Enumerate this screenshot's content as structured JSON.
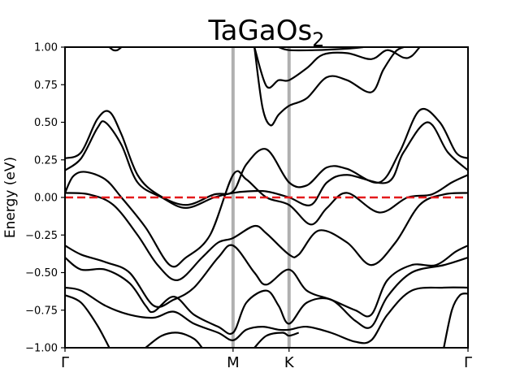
{
  "chart_data": {
    "type": "line",
    "title": "TaGaOs",
    "title_subscript": "2",
    "ylabel": "Energy (eV)",
    "xlabel": "",
    "ylim": [
      -1.0,
      1.0
    ],
    "xlim": [
      0,
      1
    ],
    "yticks": [
      1.0,
      0.75,
      0.5,
      0.25,
      0.0,
      -0.25,
      -0.5,
      -0.75,
      -1.0
    ],
    "ytick_labels": [
      "1.00",
      "0.75",
      "0.50",
      "0.25",
      "0.00",
      "−0.25",
      "−0.50",
      "−0.75",
      "−1.00"
    ],
    "xticks": [
      {
        "label": "Γ",
        "pos": 0.0
      },
      {
        "label": "M",
        "pos": 0.417
      },
      {
        "label": "K",
        "pos": 0.556
      },
      {
        "label": "Γ",
        "pos": 1.0
      }
    ],
    "kpoint_line_color": "#b0b0b0",
    "fermi_level": {
      "value": 0.0,
      "color": "#e41a1c",
      "style": "dashed"
    },
    "band_color": "#000000",
    "grid": false,
    "series": [
      {
        "points": [
          [
            0.0,
            0.26
          ],
          [
            0.04,
            0.3
          ],
          [
            0.08,
            0.52
          ],
          [
            0.11,
            0.57
          ],
          [
            0.14,
            0.42
          ],
          [
            0.18,
            0.15
          ],
          [
            0.23,
            0.02
          ],
          [
            0.3,
            -0.05
          ],
          [
            0.37,
            0.02
          ],
          [
            0.417,
            0.04
          ],
          [
            0.45,
            0.22
          ],
          [
            0.5,
            0.32
          ],
          [
            0.556,
            0.1
          ],
          [
            0.6,
            0.08
          ],
          [
            0.65,
            0.2
          ],
          [
            0.7,
            0.19
          ],
          [
            0.78,
            0.1
          ],
          [
            0.83,
            0.3
          ],
          [
            0.88,
            0.58
          ],
          [
            0.93,
            0.5
          ],
          [
            0.97,
            0.3
          ],
          [
            1.0,
            0.26
          ]
        ]
      },
      {
        "points": [
          [
            0.0,
            0.18
          ],
          [
            0.04,
            0.26
          ],
          [
            0.08,
            0.46
          ],
          [
            0.1,
            0.5
          ],
          [
            0.14,
            0.35
          ],
          [
            0.18,
            0.1
          ],
          [
            0.24,
            0.0
          ],
          [
            0.3,
            -0.07
          ],
          [
            0.37,
            0.0
          ],
          [
            0.417,
            0.03
          ],
          [
            0.45,
            0.04
          ],
          [
            0.5,
            0.04
          ],
          [
            0.556,
            0.0
          ],
          [
            0.61,
            -0.05
          ],
          [
            0.65,
            0.1
          ],
          [
            0.7,
            0.15
          ],
          [
            0.8,
            0.1
          ],
          [
            0.84,
            0.3
          ],
          [
            0.9,
            0.5
          ],
          [
            0.95,
            0.3
          ],
          [
            1.0,
            0.18
          ]
        ]
      },
      {
        "points": [
          [
            0.0,
            0.03
          ],
          [
            0.02,
            0.14
          ],
          [
            0.05,
            0.17
          ],
          [
            0.1,
            0.12
          ],
          [
            0.14,
            0.0
          ],
          [
            0.2,
            -0.2
          ],
          [
            0.26,
            -0.45
          ],
          [
            0.3,
            -0.4
          ],
          [
            0.36,
            -0.25
          ],
          [
            0.417,
            0.15
          ],
          [
            0.45,
            0.12
          ],
          [
            0.5,
            0.0
          ],
          [
            0.556,
            -0.05
          ],
          [
            0.61,
            -0.18
          ],
          [
            0.65,
            -0.07
          ],
          [
            0.7,
            0.03
          ],
          [
            0.78,
            -0.1
          ],
          [
            0.85,
            0.0
          ],
          [
            0.91,
            0.02
          ],
          [
            0.96,
            0.1
          ],
          [
            1.0,
            0.15
          ]
        ]
      },
      {
        "points": [
          [
            0.0,
            0.03
          ],
          [
            0.06,
            0.02
          ],
          [
            0.12,
            -0.05
          ],
          [
            0.18,
            -0.25
          ],
          [
            0.23,
            -0.45
          ],
          [
            0.28,
            -0.55
          ],
          [
            0.34,
            -0.4
          ],
          [
            0.38,
            -0.3
          ],
          [
            0.417,
            -0.27
          ],
          [
            0.47,
            -0.19
          ],
          [
            0.5,
            -0.24
          ],
          [
            0.556,
            -0.38
          ],
          [
            0.58,
            -0.38
          ],
          [
            0.63,
            -0.22
          ],
          [
            0.7,
            -0.3
          ],
          [
            0.76,
            -0.45
          ],
          [
            0.82,
            -0.3
          ],
          [
            0.88,
            -0.05
          ],
          [
            0.94,
            0.02
          ],
          [
            1.0,
            0.03
          ]
        ]
      },
      {
        "points": [
          [
            0.0,
            -0.32
          ],
          [
            0.04,
            -0.38
          ],
          [
            0.1,
            -0.43
          ],
          [
            0.16,
            -0.5
          ],
          [
            0.22,
            -0.72
          ],
          [
            0.27,
            -0.68
          ],
          [
            0.32,
            -0.6
          ],
          [
            0.38,
            -0.4
          ],
          [
            0.417,
            -0.32
          ],
          [
            0.47,
            -0.5
          ],
          [
            0.5,
            -0.58
          ],
          [
            0.556,
            -0.48
          ],
          [
            0.6,
            -0.62
          ],
          [
            0.66,
            -0.68
          ],
          [
            0.72,
            -0.75
          ],
          [
            0.76,
            -0.78
          ],
          [
            0.8,
            -0.55
          ],
          [
            0.86,
            -0.45
          ],
          [
            0.92,
            -0.45
          ],
          [
            0.97,
            -0.36
          ],
          [
            1.0,
            -0.32
          ]
        ]
      },
      {
        "points": [
          [
            0.0,
            -0.4
          ],
          [
            0.04,
            -0.48
          ],
          [
            0.1,
            -0.48
          ],
          [
            0.16,
            -0.57
          ],
          [
            0.2,
            -0.72
          ],
          [
            0.22,
            -0.76
          ],
          [
            0.27,
            -0.66
          ],
          [
            0.32,
            -0.78
          ],
          [
            0.38,
            -0.86
          ],
          [
            0.417,
            -0.9
          ],
          [
            0.45,
            -0.7
          ],
          [
            0.5,
            -0.62
          ],
          [
            0.53,
            -0.72
          ],
          [
            0.556,
            -0.84
          ],
          [
            0.6,
            -0.7
          ],
          [
            0.66,
            -0.68
          ],
          [
            0.72,
            -0.82
          ],
          [
            0.76,
            -0.86
          ],
          [
            0.8,
            -0.66
          ],
          [
            0.86,
            -0.5
          ],
          [
            0.94,
            -0.45
          ],
          [
            1.0,
            -0.4
          ]
        ]
      },
      {
        "points": [
          [
            0.0,
            -0.6
          ],
          [
            0.04,
            -0.62
          ],
          [
            0.1,
            -0.72
          ],
          [
            0.16,
            -0.78
          ],
          [
            0.22,
            -0.8
          ],
          [
            0.27,
            -0.76
          ],
          [
            0.32,
            -0.84
          ],
          [
            0.38,
            -0.9
          ],
          [
            0.417,
            -0.95
          ],
          [
            0.45,
            -0.88
          ],
          [
            0.49,
            -0.86
          ],
          [
            0.53,
            -0.88
          ],
          [
            0.556,
            -0.88
          ],
          [
            0.6,
            -0.86
          ],
          [
            0.66,
            -0.9
          ],
          [
            0.72,
            -0.96
          ],
          [
            0.76,
            -0.95
          ],
          [
            0.8,
            -0.78
          ],
          [
            0.86,
            -0.62
          ],
          [
            0.94,
            -0.6
          ],
          [
            1.0,
            -0.6
          ]
        ]
      },
      {
        "points": [
          [
            0.0,
            -0.65
          ],
          [
            0.04,
            -0.7
          ],
          [
            0.08,
            -0.85
          ],
          [
            0.11,
            -1.0
          ]
        ]
      },
      {
        "points": [
          [
            0.94,
            -1.0
          ],
          [
            0.96,
            -0.75
          ],
          [
            0.98,
            -0.65
          ],
          [
            1.0,
            -0.64
          ]
        ]
      },
      {
        "points": [
          [
            0.2,
            -1.0
          ],
          [
            0.24,
            -0.92
          ],
          [
            0.28,
            -0.9
          ],
          [
            0.32,
            -0.94
          ],
          [
            0.34,
            -1.0
          ]
        ]
      },
      {
        "points": [
          [
            0.47,
            -1.0
          ],
          [
            0.5,
            -0.92
          ],
          [
            0.54,
            -0.9
          ],
          [
            0.556,
            -0.92
          ],
          [
            0.58,
            -0.9
          ]
        ]
      },
      {
        "points": [
          [
            0.47,
            1.0
          ],
          [
            0.49,
            0.6
          ],
          [
            0.51,
            0.48
          ],
          [
            0.53,
            0.55
          ],
          [
            0.556,
            0.61
          ],
          [
            0.6,
            0.66
          ],
          [
            0.65,
            0.8
          ],
          [
            0.7,
            0.78
          ],
          [
            0.76,
            0.7
          ],
          [
            0.79,
            0.85
          ],
          [
            0.82,
            0.97
          ],
          [
            0.84,
            1.0
          ]
        ]
      },
      {
        "points": [
          [
            0.47,
            1.0
          ],
          [
            0.5,
            0.74
          ],
          [
            0.53,
            0.78
          ],
          [
            0.556,
            0.78
          ],
          [
            0.6,
            0.86
          ],
          [
            0.64,
            0.95
          ],
          [
            0.7,
            0.96
          ],
          [
            0.76,
            0.92
          ],
          [
            0.8,
            0.98
          ],
          [
            0.84,
            0.93
          ],
          [
            0.86,
            0.94
          ],
          [
            0.88,
            1.0
          ]
        ]
      },
      {
        "points": [
          [
            0.11,
            1.0
          ],
          [
            0.12,
            0.98
          ],
          [
            0.13,
            0.98
          ],
          [
            0.14,
            1.0
          ]
        ]
      },
      {
        "points": [
          [
            0.53,
            1.0
          ],
          [
            0.556,
            0.98
          ],
          [
            0.62,
            0.98
          ],
          [
            0.7,
            0.99
          ],
          [
            0.74,
            1.0
          ]
        ]
      }
    ]
  }
}
